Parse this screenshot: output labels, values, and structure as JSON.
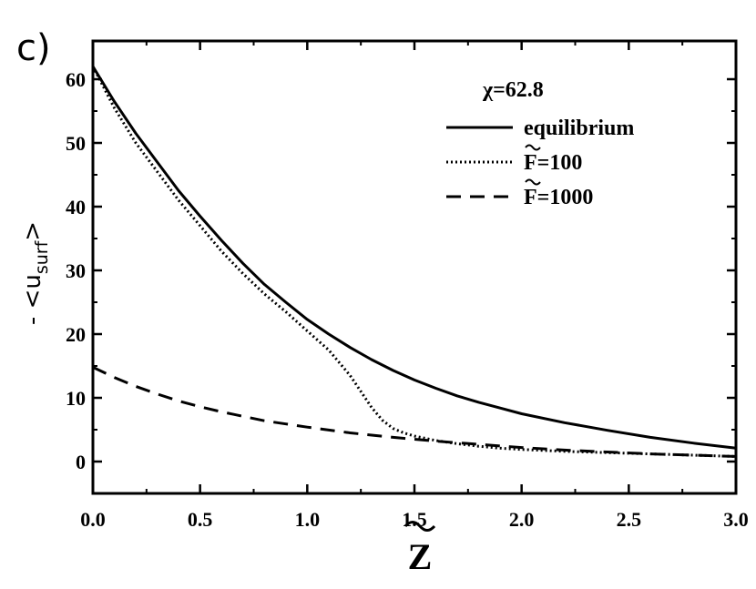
{
  "panel_label": "c)",
  "colors": {
    "line": "#000000",
    "background": "#ffffff"
  },
  "chart_data": {
    "type": "line",
    "xlabel": "Z",
    "xlabel_tilde": true,
    "ylabel": {
      "prefix": "- <u",
      "subscript": "surf",
      "suffix": ">"
    },
    "xlim": [
      0.0,
      3.0
    ],
    "ylim": [
      -5,
      66
    ],
    "x_ticks": [
      0.0,
      0.5,
      1.0,
      1.5,
      2.0,
      2.5,
      3.0
    ],
    "x_tick_labels": [
      "0.0",
      "0.5",
      "1.0",
      "1.5",
      "2.0",
      "2.5",
      "3.0"
    ],
    "y_ticks": [
      0,
      10,
      20,
      30,
      40,
      50,
      60
    ],
    "y_tick_labels": [
      "0",
      "10",
      "20",
      "30",
      "40",
      "50",
      "60"
    ],
    "grid": false,
    "legend_position": "top-right",
    "legend_title": "χ=62.8",
    "series": [
      {
        "name": "equilibrium",
        "style": "solid",
        "x": [
          0.0,
          0.1,
          0.2,
          0.3,
          0.4,
          0.5,
          0.6,
          0.7,
          0.8,
          0.9,
          1.0,
          1.1,
          1.2,
          1.3,
          1.4,
          1.5,
          1.6,
          1.7,
          1.8,
          1.9,
          2.0,
          2.2,
          2.4,
          2.6,
          2.8,
          3.0
        ],
        "y": [
          62.0,
          56.5,
          51.5,
          47.0,
          42.5,
          38.5,
          34.7,
          31.1,
          27.8,
          25.0,
          22.3,
          20.0,
          17.9,
          16.0,
          14.3,
          12.8,
          11.5,
          10.3,
          9.3,
          8.4,
          7.5,
          6.1,
          4.9,
          3.8,
          2.9,
          2.1
        ]
      },
      {
        "name": "F=100",
        "style": "dotted",
        "x": [
          0.0,
          0.1,
          0.2,
          0.3,
          0.4,
          0.5,
          0.6,
          0.7,
          0.8,
          0.9,
          1.0,
          1.1,
          1.2,
          1.25,
          1.3,
          1.35,
          1.4,
          1.45,
          1.5,
          1.6,
          1.7,
          1.8,
          1.9,
          2.0,
          2.2,
          2.4,
          2.6,
          2.8,
          3.0
        ],
        "y": [
          62.0,
          55.5,
          50.0,
          45.5,
          41.0,
          37.0,
          33.0,
          29.5,
          26.3,
          23.5,
          20.5,
          17.5,
          13.5,
          11.0,
          8.5,
          6.5,
          5.2,
          4.5,
          4.0,
          3.3,
          2.8,
          2.4,
          2.1,
          1.9,
          1.6,
          1.4,
          1.2,
          1.0,
          0.8
        ]
      },
      {
        "name": "F=1000",
        "style": "dashed",
        "x": [
          0.0,
          0.1,
          0.2,
          0.3,
          0.4,
          0.5,
          0.6,
          0.7,
          0.8,
          0.9,
          1.0,
          1.2,
          1.4,
          1.6,
          1.8,
          2.0,
          2.2,
          2.4,
          2.6,
          2.8,
          3.0
        ],
        "y": [
          14.8,
          13.2,
          11.8,
          10.6,
          9.5,
          8.6,
          7.8,
          7.1,
          6.4,
          5.9,
          5.4,
          4.5,
          3.8,
          3.2,
          2.7,
          2.2,
          1.8,
          1.5,
          1.2,
          1.0,
          0.8
        ]
      }
    ]
  }
}
